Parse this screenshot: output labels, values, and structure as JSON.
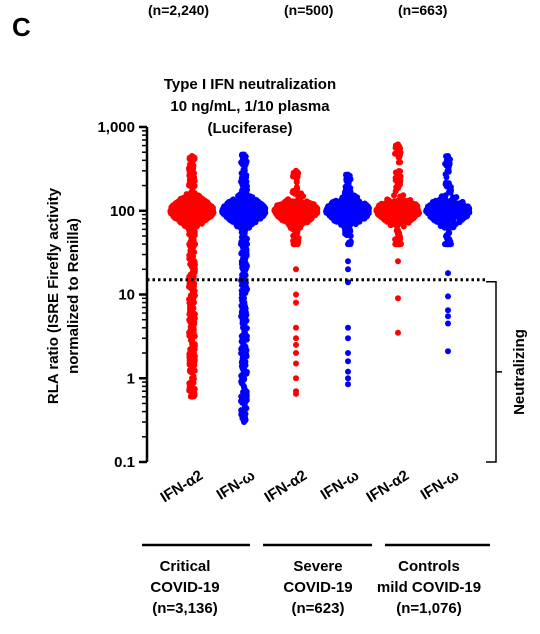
{
  "panel_letter": "C",
  "top_counts": [
    "(n=2,240)",
    "(n=500)",
    "(n=663)"
  ],
  "chart_data": {
    "type": "scatter",
    "subtype": "beeswarm",
    "title": [
      "Type I IFN neutralization",
      "10 ng/mL, 1/10 plasma",
      "(Luciferase)"
    ],
    "ylabel": [
      "RLA ratio (ISRE Firefly activity",
      "normalized to Renilla)"
    ],
    "yscale": "log",
    "ylim": [
      0.1,
      1000
    ],
    "yticks": [
      "1,000",
      "100",
      "10",
      "1",
      "0.1"
    ],
    "ytick_values": [
      1000,
      100,
      10,
      1,
      0.1
    ],
    "categories": [
      "IFN-α2",
      "IFN-ω",
      "IFN-α2",
      "IFN-ω",
      "IFN-α2",
      "IFN-ω"
    ],
    "threshold": 15,
    "threshold_style": "dotted",
    "bracket_label": "Neutralizing",
    "bracket_range": [
      0.1,
      15
    ],
    "colors": {
      "IFN-α2": "#ff0000",
      "IFN-ω": "#0000ff"
    },
    "groups": [
      {
        "label": [
          "Critical",
          "COVID-19",
          "(n=3,136)"
        ],
        "categories": [
          0,
          1
        ]
      },
      {
        "label": [
          "Severe",
          "COVID-19",
          "(n=623)"
        ],
        "categories": [
          2,
          3
        ]
      },
      {
        "label": [
          "Controls",
          "mild COVID-19",
          "(n=1,076)"
        ],
        "categories": [
          4,
          5
        ]
      }
    ],
    "series": [
      {
        "category": 0,
        "max": 450,
        "min": 0.6,
        "low_points": [
          0.6,
          0.7,
          0.8,
          1,
          1.3,
          2,
          3,
          5,
          8,
          12
        ]
      },
      {
        "category": 1,
        "max": 470,
        "min": 0.3,
        "low_points": [
          0.3,
          0.8,
          1,
          1.5,
          2.5,
          4,
          6,
          9,
          13
        ]
      },
      {
        "category": 2,
        "max": 300,
        "min": 0.65,
        "low_points": [
          0.65,
          0.7,
          1,
          1.5,
          2,
          2.5,
          3,
          4,
          8,
          10,
          20
        ]
      },
      {
        "category": 3,
        "max": 270,
        "min": 0.85,
        "low_points": [
          0.85,
          1,
          1.2,
          1.6,
          2,
          3,
          4,
          14,
          20,
          25
        ]
      },
      {
        "category": 4,
        "max": 620,
        "min": 3.5,
        "low_points": [
          3.5,
          9,
          25
        ]
      },
      {
        "category": 5,
        "max": 450,
        "min": 2.1,
        "low_points": [
          2.1,
          4.5,
          5.5,
          6.5,
          9.5,
          18
        ]
      }
    ]
  }
}
